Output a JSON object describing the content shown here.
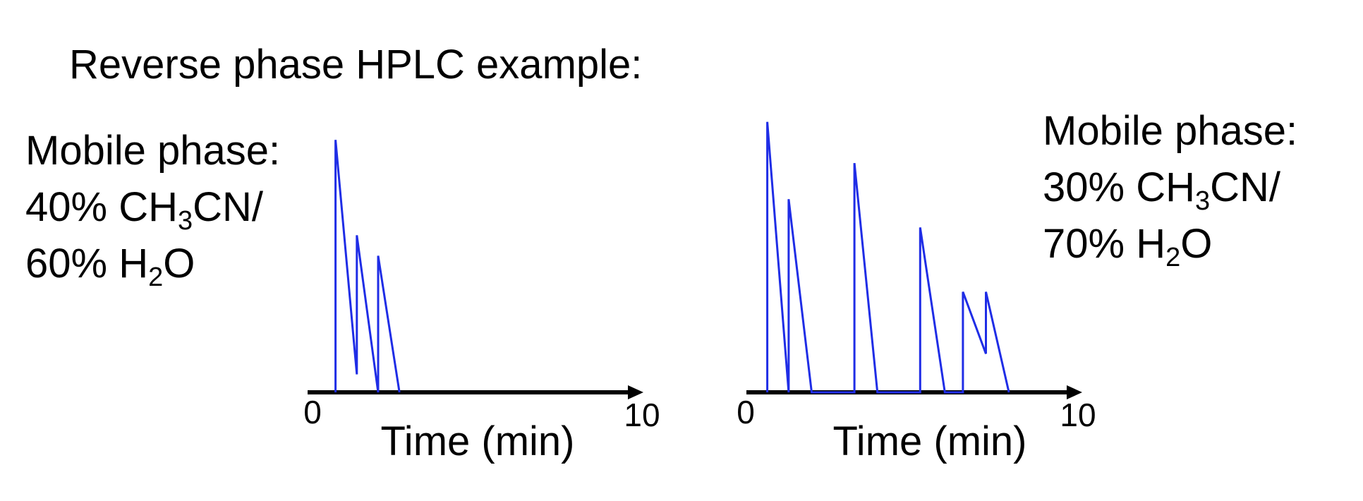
{
  "title": "Reverse phase HPLC example:",
  "mobile_phase_left": {
    "heading": "Mobile phase:",
    "line1_pre": "40% CH",
    "line1_sub": "3",
    "line1_post": "CN/",
    "line2_pre": "60% H",
    "line2_sub": "2",
    "line2_post": "O"
  },
  "mobile_phase_right": {
    "heading": "Mobile phase:",
    "line1_pre": "30% CH",
    "line1_sub": "3",
    "line1_post": "CN/",
    "line2_pre": "70% H",
    "line2_sub": "2",
    "line2_post": "O"
  },
  "colors": {
    "trace": "#1f2de6",
    "axis": "#000000"
  },
  "chart_data": [
    {
      "type": "line",
      "xlabel": "Time (min)",
      "ylabel": "",
      "xlim": [
        0,
        10
      ],
      "ylim": [
        0,
        1
      ],
      "x_tick_labels": [
        "0",
        "10"
      ],
      "grid": false,
      "series": [
        {
          "x": [
            0.7,
            0.7,
            1.35,
            1.35,
            2.0,
            2.0,
            2.65
          ],
          "y": [
            0,
            0.98,
            0.07,
            0.61,
            0.0,
            0.53,
            0.0
          ]
        }
      ]
    },
    {
      "type": "line",
      "xlabel": "Time (min)",
      "ylabel": "",
      "xlim": [
        0,
        10
      ],
      "ylim": [
        0,
        1
      ],
      "x_tick_labels": [
        "0",
        "10"
      ],
      "grid": false,
      "series": [
        {
          "x": [
            0.55,
            0.55,
            1.2,
            1.2,
            1.9,
            3.2,
            3.2,
            3.9,
            5.2,
            5.2,
            5.95,
            6.5,
            6.5,
            7.2,
            7.2,
            7.9
          ],
          "y": [
            0,
            1.05,
            0.0,
            0.75,
            0.0,
            0.0,
            0.89,
            0.0,
            0.0,
            0.64,
            0.0,
            0.0,
            0.39,
            0.15,
            0.39,
            0.0
          ]
        }
      ]
    }
  ]
}
